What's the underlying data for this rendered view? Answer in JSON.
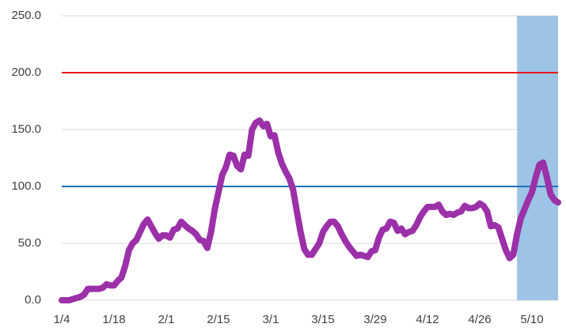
{
  "chart_data": {
    "type": "line",
    "categories": [
      "1/4",
      null,
      null,
      null,
      null,
      null,
      null,
      null,
      null,
      null,
      null,
      null,
      null,
      null,
      "1/18",
      null,
      null,
      null,
      null,
      null,
      null,
      null,
      null,
      null,
      null,
      null,
      null,
      null,
      "2/1",
      null,
      null,
      null,
      null,
      null,
      null,
      null,
      null,
      null,
      null,
      null,
      null,
      null,
      "2/15",
      null,
      null,
      null,
      null,
      null,
      null,
      null,
      null,
      null,
      null,
      null,
      null,
      null,
      "3/1",
      null,
      null,
      null,
      null,
      null,
      null,
      null,
      null,
      null,
      null,
      null,
      null,
      null,
      "3/15",
      null,
      null,
      null,
      null,
      null,
      null,
      null,
      null,
      null,
      null,
      null,
      null,
      null,
      "3/29",
      null,
      null,
      null,
      null,
      null,
      null,
      null,
      null,
      null,
      null,
      null,
      null,
      null,
      "4/12",
      null,
      null,
      null,
      null,
      null,
      null,
      null,
      null,
      null,
      null,
      null,
      null,
      null,
      "4/26",
      null,
      null,
      null,
      null,
      null,
      null,
      null,
      null,
      null,
      null,
      null,
      null,
      null,
      "5/10",
      null,
      null,
      null,
      null,
      null,
      null,
      null
    ],
    "values": [
      0,
      0,
      0,
      1,
      2,
      3,
      5,
      10,
      10,
      10,
      10,
      11,
      14,
      13,
      13,
      17,
      20,
      30,
      44,
      50,
      53,
      60,
      67,
      71,
      65,
      59,
      54,
      57,
      57,
      55,
      62,
      63,
      69,
      66,
      63,
      61,
      58,
      53,
      52,
      46,
      60,
      80,
      95,
      110,
      117,
      128,
      127,
      118,
      115,
      128,
      127,
      150,
      156,
      158,
      153,
      155,
      144,
      145,
      130,
      120,
      113,
      107,
      97,
      78,
      60,
      45,
      40,
      40,
      45,
      50,
      60,
      65,
      69,
      69,
      65,
      58,
      52,
      47,
      43,
      39,
      40,
      39,
      38,
      43,
      44,
      55,
      62,
      63,
      69,
      68,
      61,
      63,
      58,
      60,
      61,
      66,
      73,
      78,
      82,
      82,
      82,
      84,
      78,
      75,
      76,
      75,
      77,
      78,
      83,
      81,
      81,
      82,
      85,
      83,
      78,
      65,
      66,
      64,
      54,
      44,
      37,
      40,
      58,
      72,
      80,
      88,
      95,
      108,
      119,
      121,
      108,
      93,
      88,
      86
    ],
    "color": "#9b30a8",
    "ylim": [
      0,
      250
    ],
    "yticks": [
      {
        "value": 0,
        "label": "0.0"
      },
      {
        "value": 50,
        "label": "50.0"
      },
      {
        "value": 100,
        "label": "100.0"
      },
      {
        "value": 150,
        "label": "150.0"
      },
      {
        "value": 200,
        "label": "200.0"
      },
      {
        "value": 250,
        "label": "250.0"
      }
    ],
    "grid": true,
    "reference_lines": [
      {
        "value": 200,
        "color": "#e41a1a"
      },
      {
        "value": 100,
        "color": "#1f6fc0"
      }
    ],
    "highlight_range": {
      "start": 122,
      "end": 133,
      "color": "#9dc3e6"
    }
  }
}
